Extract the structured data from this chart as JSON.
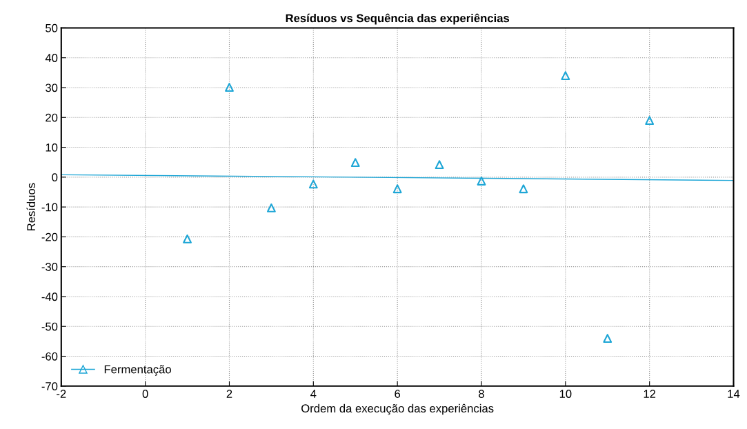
{
  "chart_data": {
    "type": "scatter",
    "title": "Resíduos vs Sequência das experiências",
    "xlabel": "Ordem da execução das experiências",
    "ylabel": "Resíduos",
    "xlim": [
      -2,
      14
    ],
    "xticks": [
      -2,
      0,
      2,
      4,
      6,
      8,
      10,
      12,
      14
    ],
    "ylim": [
      -70,
      50
    ],
    "yticks": [
      -70,
      -60,
      -50,
      -40,
      -30,
      -20,
      -10,
      0,
      10,
      20,
      30,
      40,
      50
    ],
    "grid": true,
    "legend": "bottom left",
    "series": [
      {
        "name": "Fermentação",
        "marker": "triangle",
        "color": "#1ea6d6",
        "x": [
          1,
          2,
          3,
          4,
          5,
          6,
          7,
          8,
          9,
          10,
          11,
          12
        ],
        "values": [
          -20.7,
          30.1,
          -10.3,
          -2.3,
          4.9,
          -3.9,
          4.2,
          -1.3,
          -3.9,
          34.0,
          -54.0,
          19.0
        ]
      },
      {
        "type": "line",
        "marker": "none",
        "color": "#1ea6d6",
        "x": [
          -2,
          14
        ],
        "values": [
          0.8,
          -1.1
        ]
      }
    ]
  }
}
